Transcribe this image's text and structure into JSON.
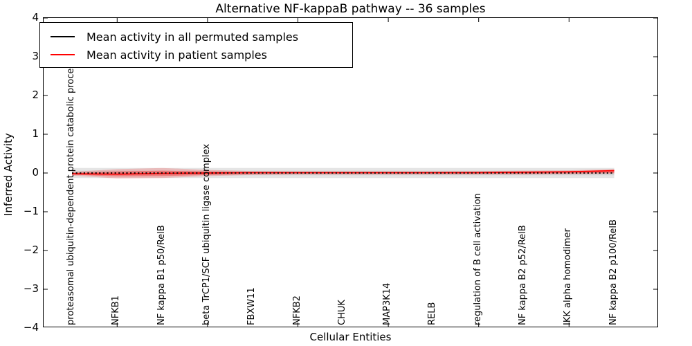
{
  "window": {
    "background": "#ffffff"
  },
  "chart_data": {
    "type": "line",
    "title": "Alternative NF-kappaB pathway -- 36 samples",
    "xlabel": "Cellular Entities",
    "ylabel": "Inferred Activity",
    "ylim": [
      -4,
      4
    ],
    "ytick_labels": [
      "4",
      "3",
      "2",
      "1",
      "0",
      "−1",
      "−2",
      "−3",
      "−4"
    ],
    "ytick_values": [
      4,
      3,
      2,
      1,
      0,
      -1,
      -2,
      -3,
      -4
    ],
    "xtick_indices": [
      1,
      3,
      5,
      7,
      9,
      11
    ],
    "grid": false,
    "legend_position": "upper left",
    "legend": [
      {
        "label": "Mean activity in all permuted samples",
        "color": "#000000"
      },
      {
        "label": "Mean activity in patient samples",
        "color": "#ff0000"
      }
    ],
    "categories": [
      "proteasomal ubiquitin-dependent protein catabolic process",
      "NFKB1",
      "NF kappa B1 p50/RelB",
      "beta TrCP1/SCF ubiquitin ligase complex",
      "FBXW11",
      "NFKB2",
      "CHUK",
      "MAP3K14",
      "RELB",
      "regulation of B cell activation",
      "NF kappa B2 p52/RelB",
      "IKK alpha homodimer",
      "NF kappa B2 p100/RelB"
    ],
    "series": [
      {
        "name": "Mean activity in all permuted samples",
        "color": "#000000",
        "style": "dotted",
        "values": [
          0,
          0,
          0,
          0,
          0,
          0,
          0,
          0,
          0,
          0,
          0,
          0,
          0
        ]
      },
      {
        "name": "Mean activity in patient samples",
        "color": "#ff0000",
        "style": "solid",
        "values": [
          -0.02,
          -0.03,
          -0.01,
          0.0,
          0.01,
          0.01,
          0.01,
          0.01,
          0.01,
          0.01,
          0.02,
          0.03,
          0.06
        ]
      }
    ],
    "bands": [
      {
        "name": "permuted-band-outer",
        "color": "rgba(0,0,0,0.10)",
        "upper": [
          0.13,
          0.13,
          0.13,
          0.13,
          0.13,
          0.13,
          0.13,
          0.13,
          0.13,
          0.13,
          0.13,
          0.13,
          0.13
        ],
        "lower": [
          -0.13,
          -0.13,
          -0.13,
          -0.13,
          -0.13,
          -0.13,
          -0.13,
          -0.13,
          -0.13,
          -0.13,
          -0.13,
          -0.13,
          -0.13
        ]
      },
      {
        "name": "permuted-band-inner",
        "color": "rgba(0,0,0,0.07)",
        "upper": [
          0.06,
          0.06,
          0.06,
          0.06,
          0.06,
          0.06,
          0.06,
          0.06,
          0.06,
          0.06,
          0.06,
          0.06,
          0.06
        ],
        "lower": [
          -0.06,
          -0.06,
          -0.06,
          -0.06,
          -0.06,
          -0.06,
          -0.06,
          -0.06,
          -0.06,
          -0.06,
          -0.06,
          -0.06,
          -0.06
        ]
      },
      {
        "name": "patient-band-outer",
        "color": "rgba(255,0,0,0.18)",
        "upper": [
          0.03,
          0.1,
          0.13,
          0.08,
          0.05,
          0.04,
          0.04,
          0.04,
          0.04,
          0.05,
          0.06,
          0.07,
          0.1
        ],
        "lower": [
          -0.07,
          -0.14,
          -0.13,
          -0.08,
          -0.05,
          -0.04,
          -0.04,
          -0.04,
          -0.04,
          -0.04,
          -0.04,
          -0.03,
          -0.02
        ]
      },
      {
        "name": "patient-band-inner",
        "color": "rgba(255,0,0,0.30)",
        "upper": [
          0.0,
          0.04,
          0.06,
          0.04,
          0.02,
          0.02,
          0.02,
          0.02,
          0.02,
          0.03,
          0.04,
          0.05,
          0.08
        ],
        "lower": [
          -0.04,
          -0.09,
          -0.08,
          -0.05,
          -0.03,
          -0.02,
          -0.02,
          -0.02,
          -0.02,
          -0.02,
          -0.02,
          -0.01,
          0.0
        ]
      }
    ]
  }
}
